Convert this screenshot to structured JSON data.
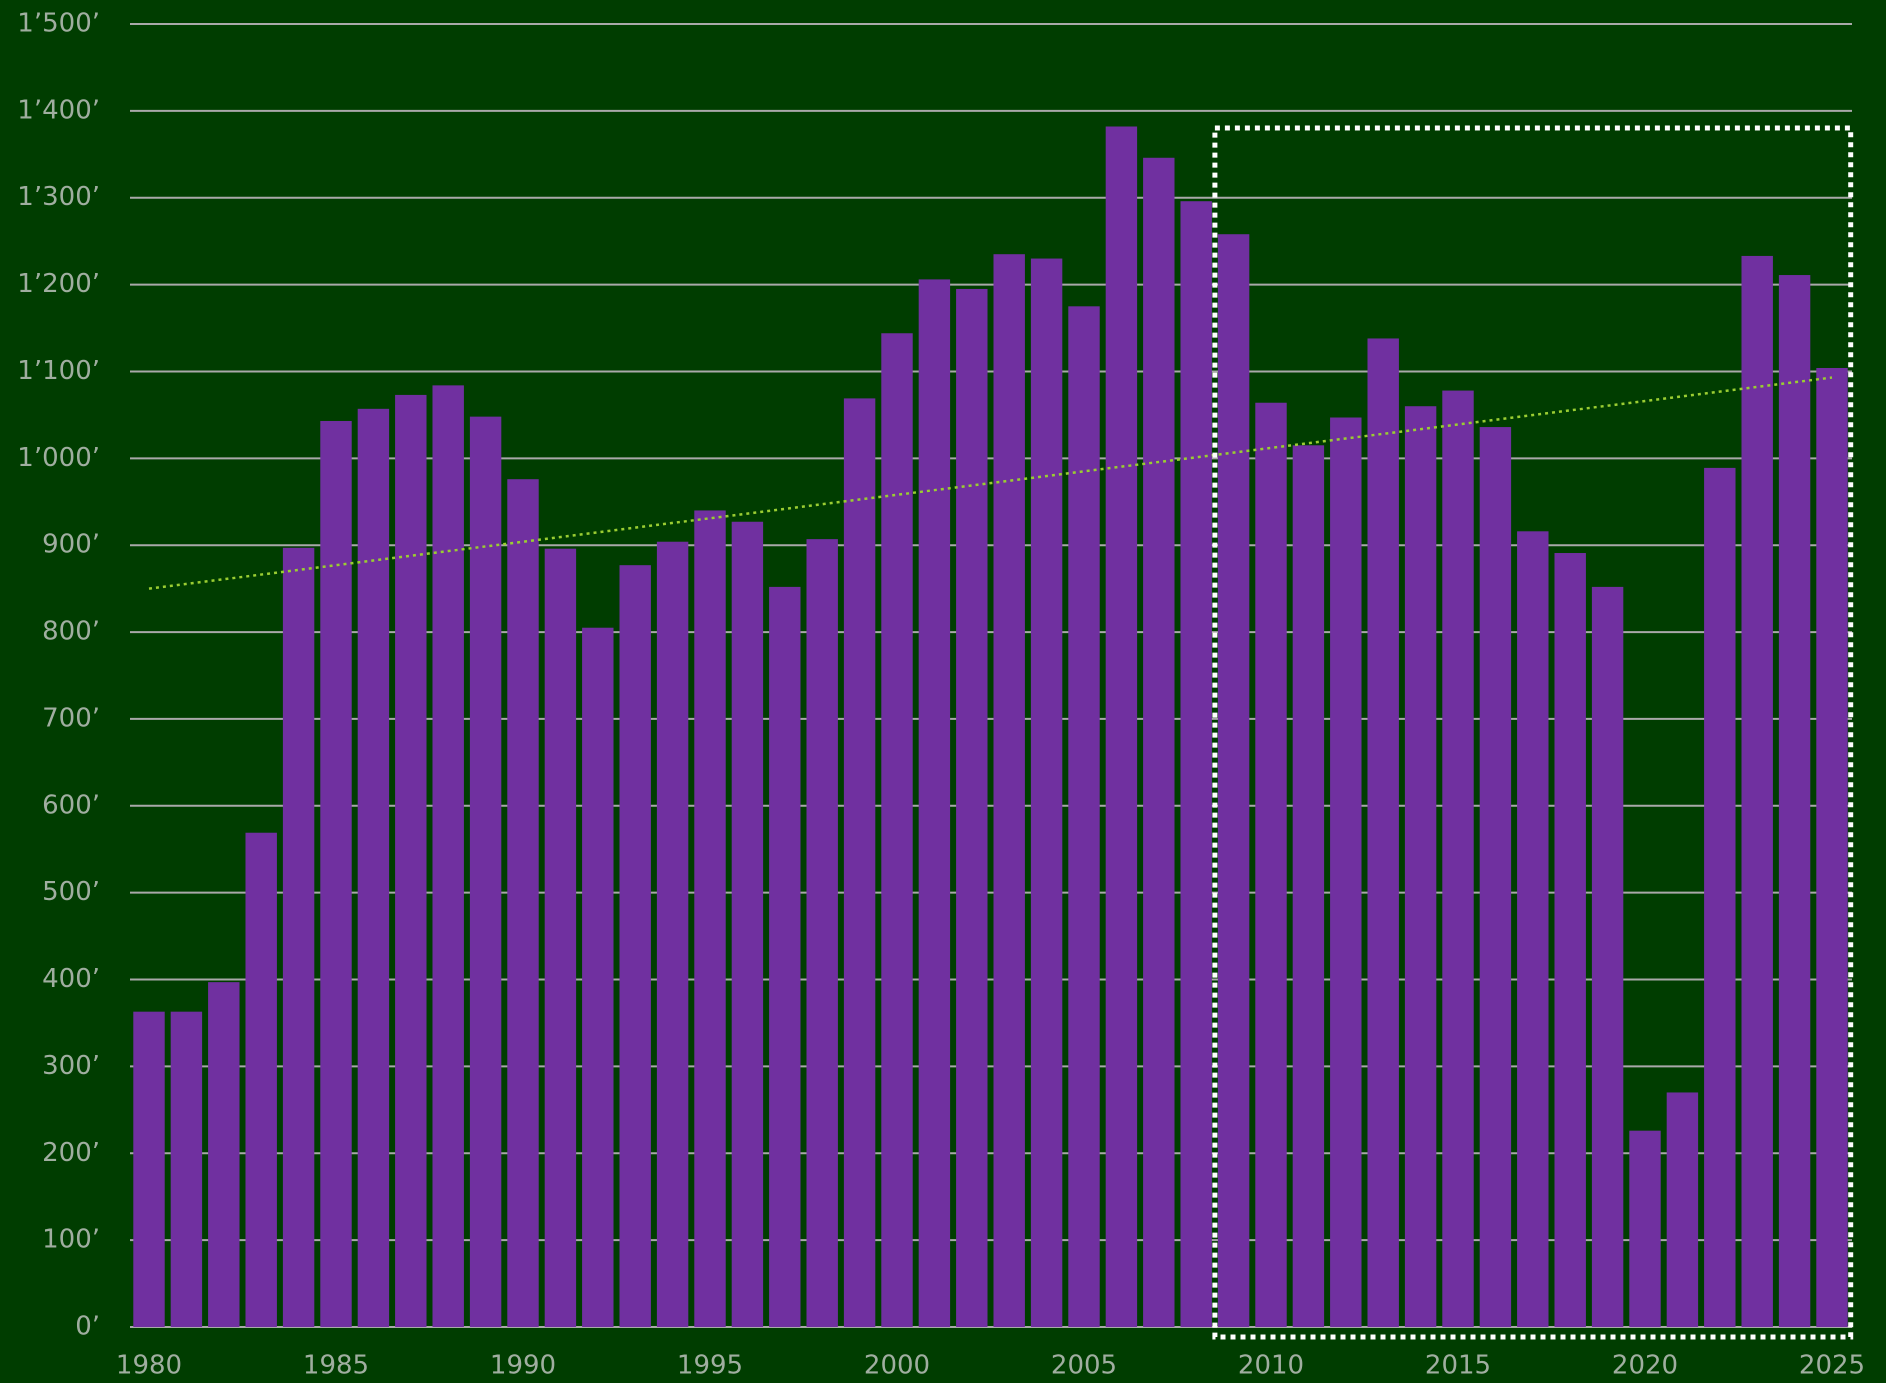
{
  "chart_data": {
    "type": "bar",
    "x": [
      1980,
      1981,
      1982,
      1983,
      1984,
      1985,
      1986,
      1987,
      1988,
      1989,
      1990,
      1991,
      1992,
      1993,
      1994,
      1995,
      1996,
      1997,
      1998,
      1999,
      2000,
      2001,
      2002,
      2003,
      2004,
      2005,
      2006,
      2007,
      2008,
      2009,
      2010,
      2011,
      2012,
      2013,
      2014,
      2015,
      2016,
      2017,
      2018,
      2019,
      2020,
      2021,
      2022,
      2023,
      2024,
      2025
    ],
    "values": [
      363,
      363,
      397,
      569,
      897,
      1043,
      1057,
      1073,
      1084,
      1048,
      976,
      896,
      805,
      877,
      904,
      940,
      927,
      852,
      907,
      1069,
      1144,
      1206,
      1195,
      1235,
      1230,
      1175,
      1382,
      1346,
      1296,
      1258,
      1064,
      1015,
      1047,
      1138,
      1060,
      1078,
      1036,
      916,
      891,
      852,
      226,
      270,
      989,
      1233,
      1211,
      1104
    ],
    "color": "#7030a0",
    "xlim": [
      1980,
      2025
    ],
    "xticks": [
      1980,
      1985,
      1990,
      1995,
      2000,
      2005,
      2010,
      2015,
      2020,
      2025
    ],
    "ylim": [
      0,
      1500
    ],
    "yticks": [
      {
        "value": 0,
        "label": "0’"
      },
      {
        "value": 100,
        "label": "100’"
      },
      {
        "value": 200,
        "label": "200’"
      },
      {
        "value": 300,
        "label": "300’"
      },
      {
        "value": 400,
        "label": "400’"
      },
      {
        "value": 500,
        "label": "500’"
      },
      {
        "value": 600,
        "label": "600’"
      },
      {
        "value": 700,
        "label": "700’"
      },
      {
        "value": 800,
        "label": "800’"
      },
      {
        "value": 900,
        "label": "900’"
      },
      {
        "value": 1000,
        "label": "1’000’"
      },
      {
        "value": 1100,
        "label": "1’100’"
      },
      {
        "value": 1200,
        "label": "1’200’"
      },
      {
        "value": 1300,
        "label": "1’300’"
      },
      {
        "value": 1400,
        "label": "1’400’"
      },
      {
        "value": 1500,
        "label": "1’500’"
      }
    ],
    "grid": true,
    "trend": {
      "x": [
        1980,
        2025
      ],
      "values": [
        850,
        1093
      ],
      "color": "#9acd32"
    },
    "highlight": {
      "x": [
        2009,
        2025
      ],
      "color": "#ffffff"
    }
  }
}
